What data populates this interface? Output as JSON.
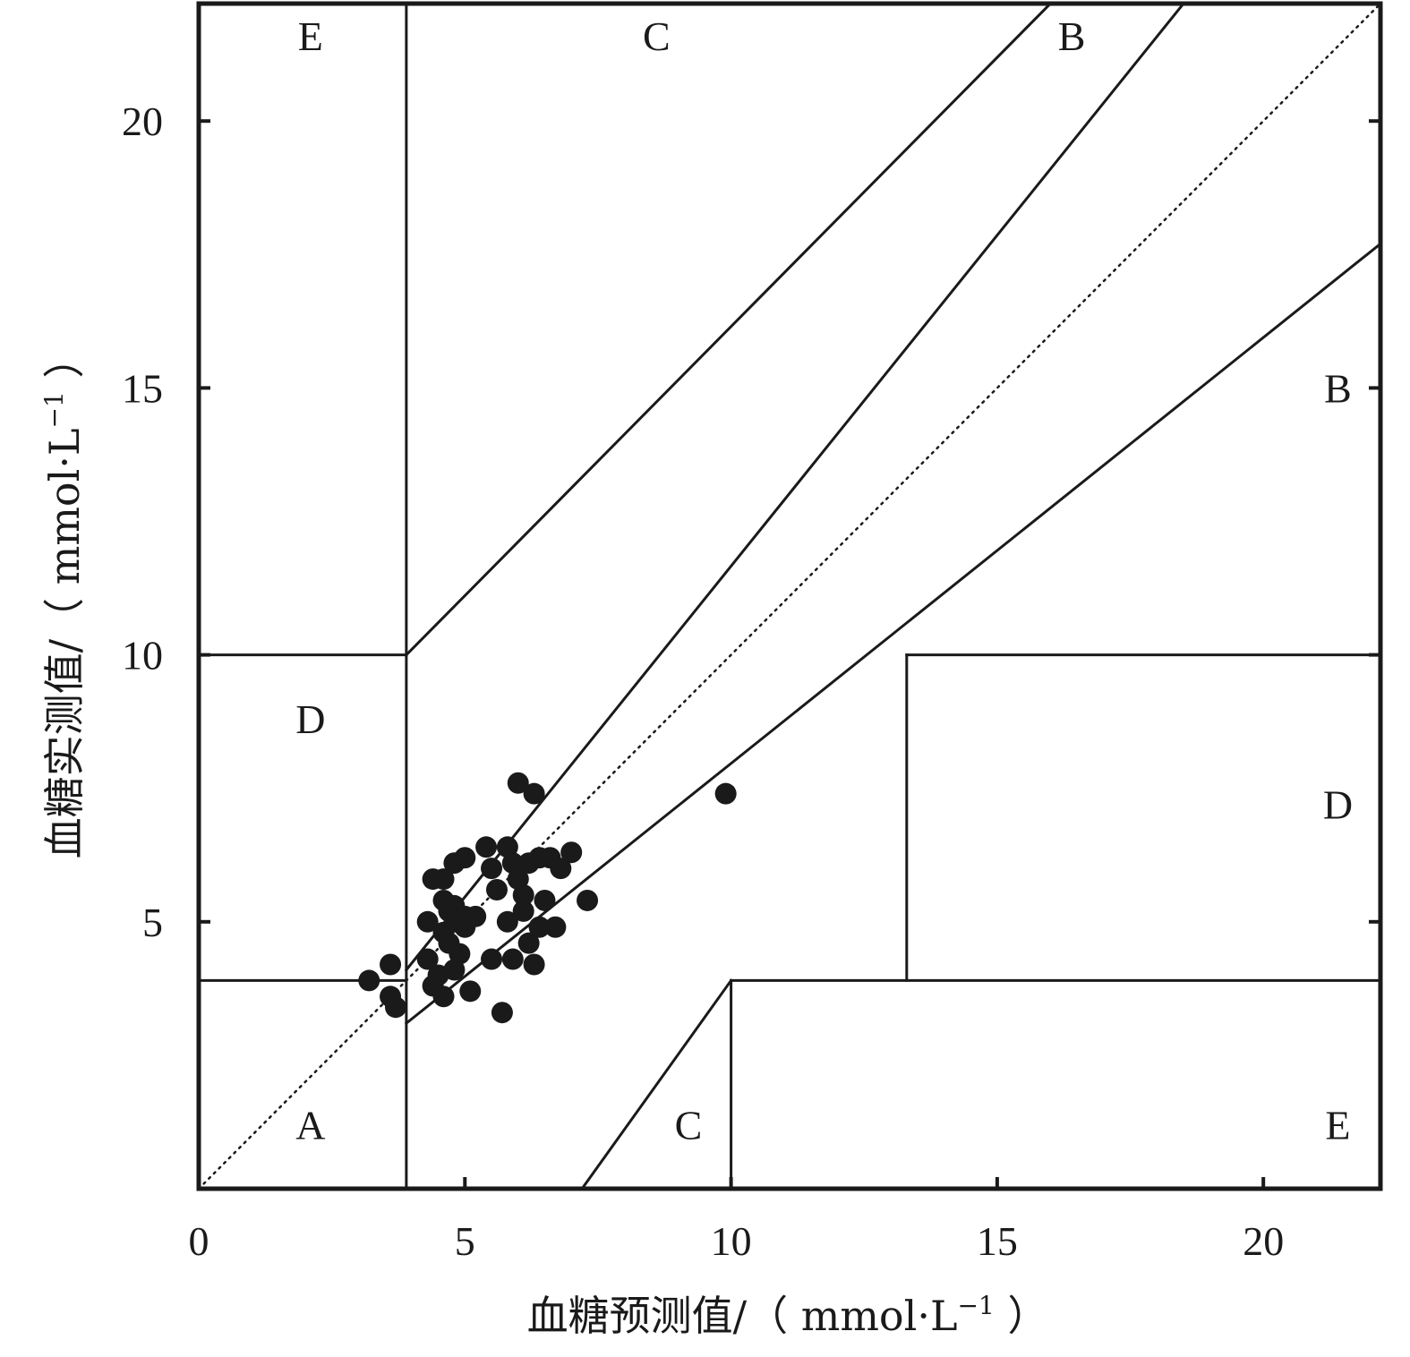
{
  "chart_data": {
    "type": "scatter",
    "title": "",
    "xlabel": "血糖预测值/（ mmol·L⁻¹ ）",
    "ylabel": "血糖实测值/（ mmol·L⁻¹ ）",
    "axis_label_parts": {
      "x": {
        "main": "血糖预测值/（ mmol·L",
        "sup": "−1",
        "tail": " ）"
      },
      "y": {
        "main": "血糖实测值/（ mmol·L",
        "sup": "−1",
        "tail": " ）"
      }
    },
    "xlim": [
      0,
      22.2
    ],
    "ylim": [
      0,
      22.2
    ],
    "x_ticks": [
      0,
      5,
      10,
      15,
      20
    ],
    "y_ticks": [
      5,
      10,
      15,
      20
    ],
    "x_tick_labels": [
      "0",
      "5",
      "10",
      "15",
      "20"
    ],
    "y_tick_labels": [
      "5",
      "10",
      "15",
      "20"
    ],
    "grid": false,
    "legend": "none",
    "colors": {
      "points": "#1a1a1a",
      "lines": "#1a1a1a",
      "background": "#ffffff"
    },
    "reference_line": {
      "style": "dotted",
      "from": [
        0,
        0
      ],
      "to": [
        22.2,
        22.2
      ]
    },
    "zone_boundaries": [
      [
        [
          3.9,
          0
        ],
        [
          3.9,
          22.2
        ]
      ],
      [
        [
          0,
          10
        ],
        [
          3.9,
          10
        ]
      ],
      [
        [
          3.9,
          10
        ],
        [
          16.0,
          22.2
        ]
      ],
      [
        [
          3.9,
          4.1
        ],
        [
          18.5,
          22.2
        ]
      ],
      [
        [
          3.9,
          3.1
        ],
        [
          22.2,
          17.7
        ]
      ],
      [
        [
          0,
          3.9
        ],
        [
          3.9,
          3.9
        ]
      ],
      [
        [
          13.3,
          3.9
        ],
        [
          13.3,
          10
        ]
      ],
      [
        [
          13.3,
          10
        ],
        [
          22.2,
          10
        ]
      ],
      [
        [
          10,
          3.9
        ],
        [
          22.2,
          3.9
        ]
      ],
      [
        [
          10,
          0
        ],
        [
          10,
          3.9
        ]
      ],
      [
        [
          7.2,
          0
        ],
        [
          10,
          3.9
        ]
      ]
    ],
    "zone_labels": [
      {
        "text": "E",
        "x": 2.1,
        "y": 21.6
      },
      {
        "text": "C",
        "x": 8.6,
        "y": 21.6
      },
      {
        "text": "B",
        "x": 16.4,
        "y": 21.6
      },
      {
        "text": "B",
        "x": 21.4,
        "y": 15.0
      },
      {
        "text": "D",
        "x": 2.1,
        "y": 8.8
      },
      {
        "text": "D",
        "x": 21.4,
        "y": 7.2
      },
      {
        "text": "A",
        "x": 2.1,
        "y": 1.2
      },
      {
        "text": "C",
        "x": 9.2,
        "y": 1.2
      },
      {
        "text": "E",
        "x": 21.4,
        "y": 1.2
      }
    ],
    "series": [
      {
        "points": [
          [
            3.2,
            3.9
          ],
          [
            3.6,
            4.2
          ],
          [
            3.6,
            3.6
          ],
          [
            3.7,
            3.4
          ],
          [
            4.3,
            5.0
          ],
          [
            4.3,
            4.3
          ],
          [
            4.4,
            5.8
          ],
          [
            4.4,
            3.8
          ],
          [
            4.5,
            4.0
          ],
          [
            4.6,
            5.8
          ],
          [
            4.6,
            5.4
          ],
          [
            4.6,
            4.8
          ],
          [
            4.6,
            3.6
          ],
          [
            4.7,
            5.2
          ],
          [
            4.7,
            4.6
          ],
          [
            4.8,
            6.1
          ],
          [
            4.8,
            5.3
          ],
          [
            4.8,
            5.0
          ],
          [
            4.8,
            4.1
          ],
          [
            4.9,
            4.4
          ],
          [
            5.0,
            6.2
          ],
          [
            5.0,
            5.1
          ],
          [
            5.0,
            4.9
          ],
          [
            5.1,
            3.7
          ],
          [
            5.2,
            5.1
          ],
          [
            5.4,
            6.4
          ],
          [
            5.5,
            6.0
          ],
          [
            5.5,
            4.3
          ],
          [
            5.6,
            5.6
          ],
          [
            5.7,
            3.3
          ],
          [
            5.8,
            6.4
          ],
          [
            5.8,
            5.0
          ],
          [
            5.9,
            6.1
          ],
          [
            5.9,
            4.3
          ],
          [
            6.0,
            7.6
          ],
          [
            6.0,
            5.8
          ],
          [
            6.1,
            5.5
          ],
          [
            6.1,
            5.2
          ],
          [
            6.2,
            4.6
          ],
          [
            6.2,
            6.1
          ],
          [
            6.3,
            7.4
          ],
          [
            6.3,
            4.2
          ],
          [
            6.4,
            6.2
          ],
          [
            6.4,
            4.9
          ],
          [
            6.5,
            5.4
          ],
          [
            6.6,
            6.2
          ],
          [
            6.7,
            4.9
          ],
          [
            6.8,
            6.0
          ],
          [
            7.0,
            6.3
          ],
          [
            7.3,
            5.4
          ],
          [
            9.9,
            7.4
          ]
        ]
      }
    ]
  }
}
